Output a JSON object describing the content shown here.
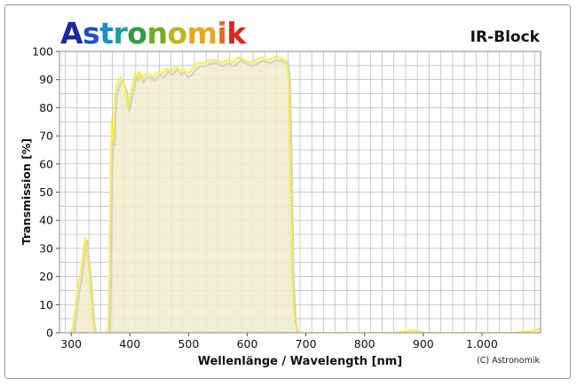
{
  "brand": {
    "name": "Astronomik",
    "letter_colors": [
      "#1a2a9c",
      "#1f4fc8",
      "#1a8fd0",
      "#1aa0a0",
      "#2e9e3c",
      "#6fae1e",
      "#b8b81a",
      "#e8a81a",
      "#e86a1a",
      "#d8281a"
    ]
  },
  "product": {
    "title": "IR-Block"
  },
  "copyright": "(C) Astronomik",
  "colors": {
    "curve": "#ffee33",
    "fill": "#f1eccc",
    "grid": "#b5b5b5",
    "shadow": "#d4d4c4"
  },
  "chart_data": {
    "type": "area",
    "title": "IR-Block",
    "xlabel": "Wellenlänge / Wavelength [nm]",
    "ylabel": "Transmission [%]",
    "xlim": [
      280,
      1100
    ],
    "ylim": [
      0,
      100
    ],
    "x_ticks": [
      300,
      400,
      500,
      600,
      700,
      800,
      900,
      1000
    ],
    "x_tick_labels": [
      "300",
      "400",
      "500",
      "600",
      "700",
      "800",
      "900",
      "1.000"
    ],
    "y_ticks": [
      0,
      10,
      20,
      30,
      40,
      50,
      60,
      70,
      80,
      90,
      100
    ],
    "grid": true,
    "series": [
      {
        "x": [
          280,
          298,
          302,
          306,
          310,
          315,
          318,
          321,
          324,
          327,
          330,
          333,
          336,
          340,
          350,
          360,
          363,
          365,
          367,
          369,
          371,
          373,
          375,
          378,
          381,
          384,
          388,
          392,
          396,
          400,
          405,
          408,
          412,
          416,
          420,
          425,
          432,
          440,
          448,
          455,
          462,
          470,
          478,
          485,
          490,
          497,
          503,
          510,
          517,
          525,
          535,
          545,
          555,
          565,
          575,
          585,
          595,
          605,
          615,
          625,
          635,
          645,
          655,
          662,
          667,
          670,
          673,
          676,
          680,
          685,
          690,
          700,
          750,
          800,
          850,
          870,
          880,
          890,
          905,
          950,
          1000,
          1050,
          1080,
          1090,
          1100
        ],
        "values": [
          0,
          0,
          1,
          8,
          15,
          20,
          25,
          30,
          34,
          28,
          22,
          15,
          5,
          0,
          0,
          0,
          2,
          20,
          55,
          76,
          68,
          80,
          86,
          88,
          90,
          91,
          89,
          87,
          80,
          84,
          89,
          92,
          91,
          93,
          90,
          92,
          92,
          91,
          93,
          92,
          94,
          93,
          95,
          93,
          94,
          92,
          93,
          95,
          96,
          96,
          97,
          97,
          96,
          97,
          96,
          98,
          97,
          96,
          97,
          98,
          97,
          98,
          98,
          97,
          97,
          90,
          60,
          20,
          5,
          0,
          0,
          0,
          0,
          0,
          0,
          0.5,
          1,
          0.5,
          0,
          0,
          0,
          0,
          0.5,
          1,
          1.5
        ]
      }
    ]
  }
}
